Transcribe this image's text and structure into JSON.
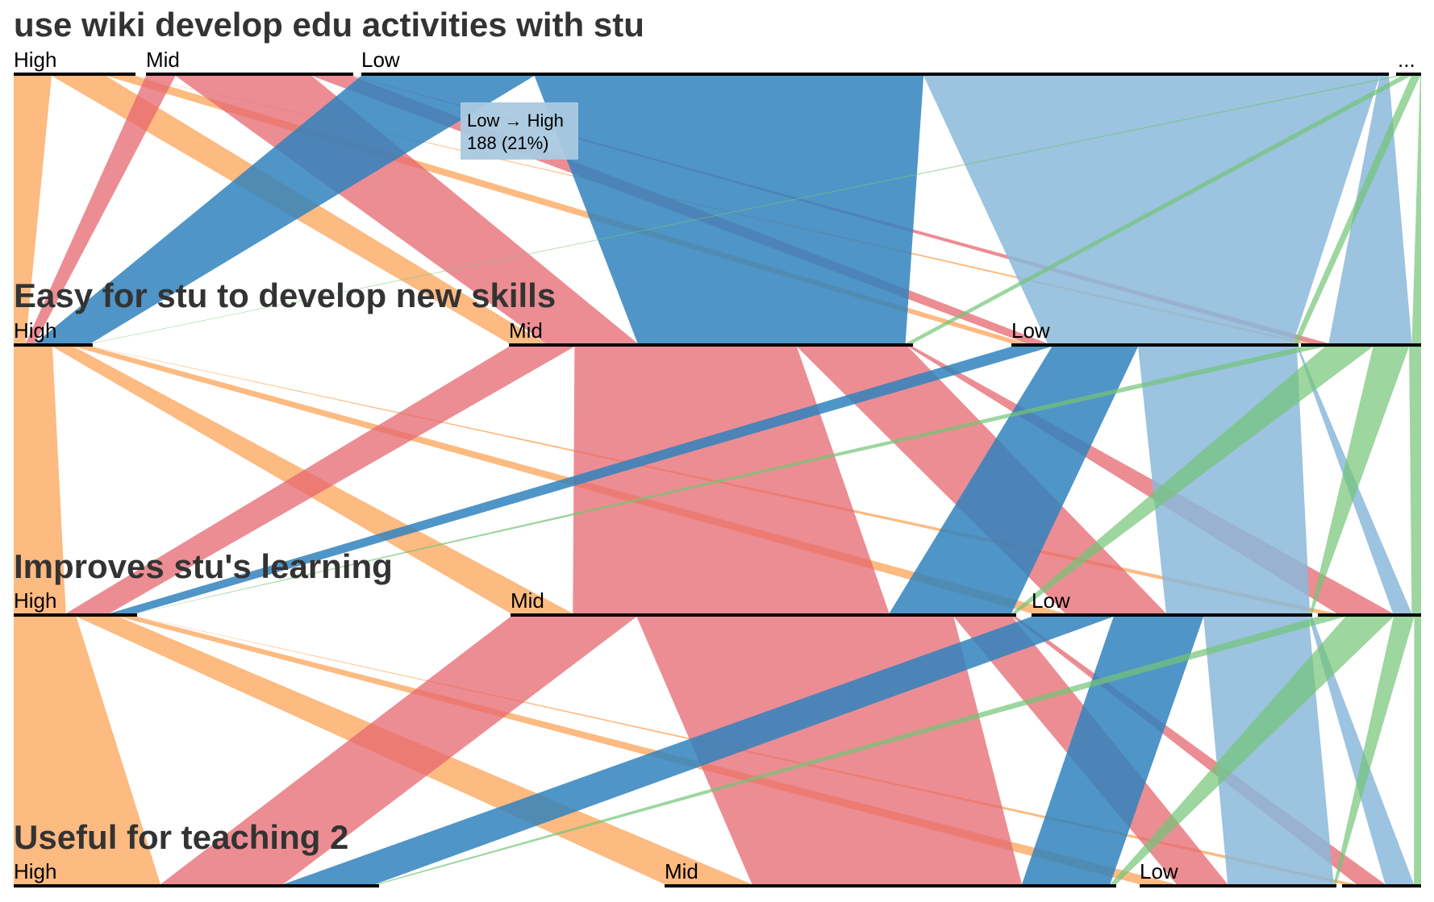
{
  "chart_data": {
    "type": "parallel-sets",
    "title": "",
    "dimensions": [
      {
        "name": "use wiki develop edu activities with stu",
        "categories": [
          {
            "label": "High",
            "count": 119
          },
          {
            "label": "Mid",
            "count": 204
          },
          {
            "label": "Low",
            "count": 1028
          },
          {
            "label": "...",
            "count": 28
          }
        ]
      },
      {
        "name": "Easy for stu to develop new skills",
        "categories": [
          {
            "label": "High",
            "count": 192
          },
          {
            "label": "Mid",
            "count": 480
          },
          {
            "label": "Low",
            "count": 340
          },
          {
            "label": "...",
            "count": 9
          }
        ]
      },
      {
        "name": "Improves stu's learning",
        "categories": [
          {
            "label": "High",
            "count": 290
          },
          {
            "label": "Mid",
            "count": 494
          },
          {
            "label": "Low",
            "count": 315
          },
          {
            "label": "...",
            "count": 14
          }
        ]
      },
      {
        "name": "Useful for teaching 2",
        "categories": [
          {
            "label": "High",
            "count": 387
          },
          {
            "label": "Mid",
            "count": 428
          },
          {
            "label": "Low",
            "count": 234
          },
          {
            "label": "...",
            "count": 12
          }
        ]
      }
    ],
    "color_by_dimension": "use wiki develop edu activities with stu",
    "colors": {
      "High": "#fdae6b",
      "Mid": "#e6676f",
      "Low": "#3182bd",
      "...": "#74c476",
      "Low_light": "#8bb8d9"
    },
    "tooltip": {
      "line1": "Low → High",
      "line2": "188 (21%)"
    }
  }
}
